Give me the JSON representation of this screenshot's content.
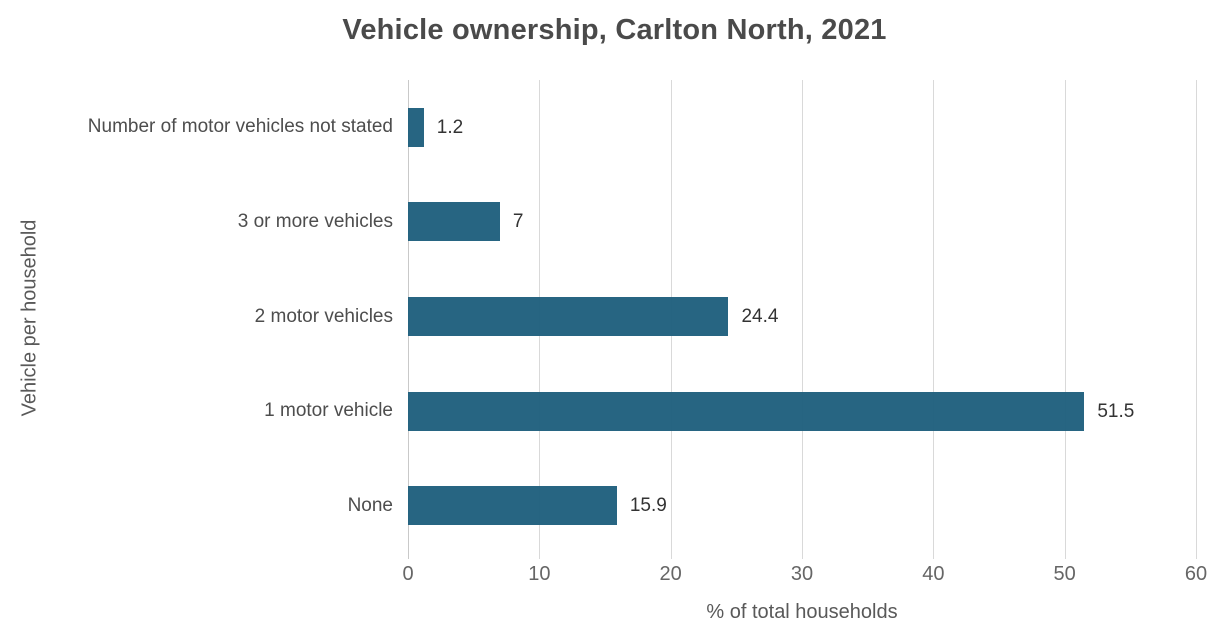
{
  "title": "Vehicle ownership, Carlton North, 2021",
  "chart_data": {
    "type": "bar",
    "orientation": "horizontal",
    "title": "Vehicle ownership, Carlton North, 2021",
    "xlabel": "% of total households",
    "ylabel": "Vehicle per household",
    "categories": [
      "Number of motor vehicles not stated",
      "3 or more vehicles",
      "2 motor vehicles",
      "1 motor vehicle",
      "None"
    ],
    "values": [
      1.2,
      7,
      24.4,
      51.5,
      15.9
    ],
    "value_labels": [
      "1.2",
      "7",
      "24.4",
      "51.5",
      "15.9"
    ],
    "xlim": [
      0,
      60
    ],
    "xticks": [
      0,
      10,
      20,
      30,
      40,
      50,
      60
    ],
    "grid": "vertical-gridlines-on",
    "legend": "none",
    "bar_color": "#1e5f7d",
    "gridline_color": "#d9d9d9"
  }
}
